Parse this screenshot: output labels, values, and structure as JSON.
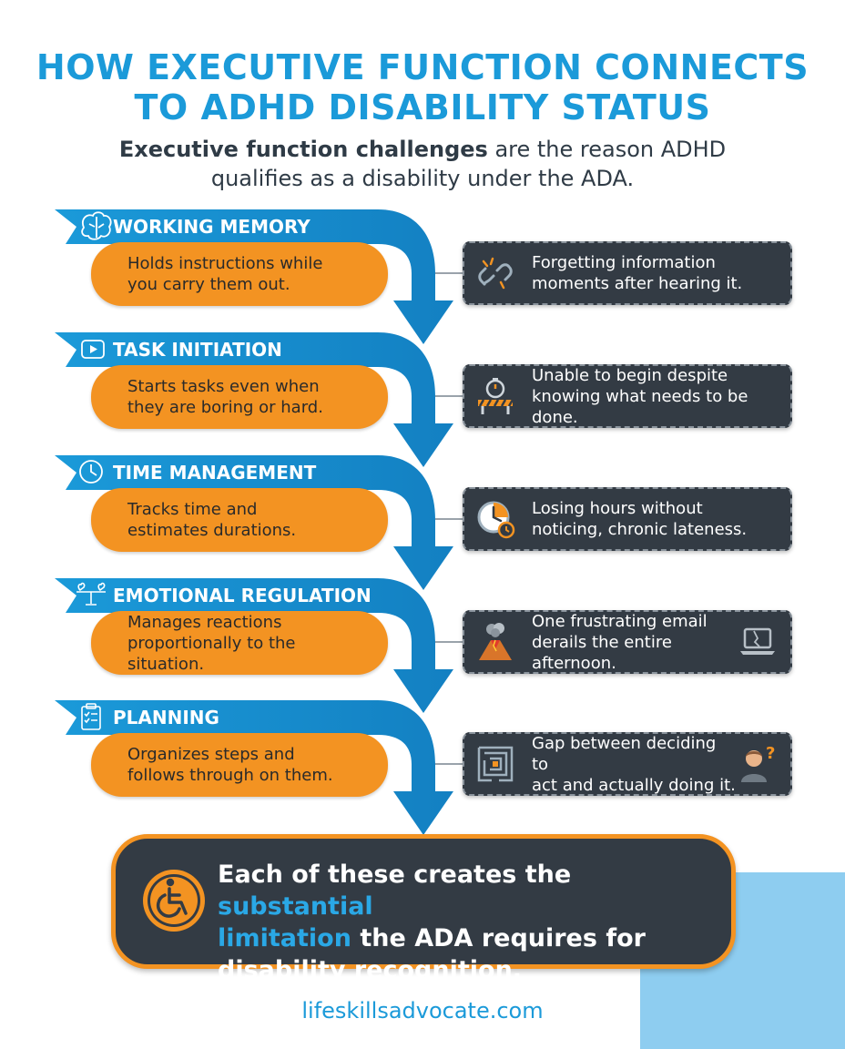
{
  "header": {
    "title_line1": "HOW EXECUTIVE FUNCTION CONNECTS",
    "title_line2": "TO ADHD DISABILITY STATUS",
    "subtitle_bold": "Executive function challenges",
    "subtitle_rest": " are the reason ADHD",
    "subtitle_line2": "qualifies as a disability under the ADA."
  },
  "functions": [
    {
      "label": "WORKING MEMORY",
      "icon": "brain-icon",
      "desc_line1": "Holds instructions while",
      "desc_line2": "you carry them out.",
      "challenge_line1": "Forgetting information",
      "challenge_line2": "moments after hearing it.",
      "challenge_icon": "broken-chain-icon"
    },
    {
      "label": "TASK INITIATION",
      "icon": "play-icon",
      "desc_line1": "Starts tasks even when",
      "desc_line2": "they are boring or hard.",
      "challenge_line1": "Unable to begin despite",
      "challenge_line2": "knowing what needs to be done.",
      "challenge_icon": "stopwatch-barrier-icon"
    },
    {
      "label": "TIME MANAGEMENT",
      "icon": "clock-icon",
      "desc_line1": "Tracks time and",
      "desc_line2": "estimates durations.",
      "challenge_line1": "Losing hours without",
      "challenge_line2": "noticing, chronic lateness.",
      "challenge_icon": "clock-icon"
    },
    {
      "label": "EMOTIONAL REGULATION",
      "icon": "balance-hearts-icon",
      "desc_line1": "Manages reactions",
      "desc_line2": "proportionally to the situation.",
      "challenge_line1": "One frustrating email",
      "challenge_line2": "derails the entire afternoon.",
      "challenge_icon": "volcano-icon",
      "challenge_icon2": "broken-laptop-icon"
    },
    {
      "label": "PLANNING",
      "icon": "clipboard-checklist-icon",
      "desc_line1": "Organizes steps and",
      "desc_line2": "follows through on them.",
      "challenge_line1": "Gap between deciding to",
      "challenge_line2": "act and actually doing it.",
      "challenge_icon": "maze-icon",
      "challenge_icon2": "confused-person-icon"
    }
  ],
  "summary": {
    "icon": "wheelchair-icon",
    "text_part1": "Each of these creates the ",
    "highlight1": "substantial",
    "highlight2": "limitation",
    "text_part2": " the ADA requires for",
    "text_line3": "disability recognition."
  },
  "footer": {
    "url": "lifeskillsadvocate.com"
  },
  "colors": {
    "blue": "#1b9ad9",
    "orange": "#f39322",
    "dark": "#333b44",
    "light_blue": "#8ecdf0"
  }
}
